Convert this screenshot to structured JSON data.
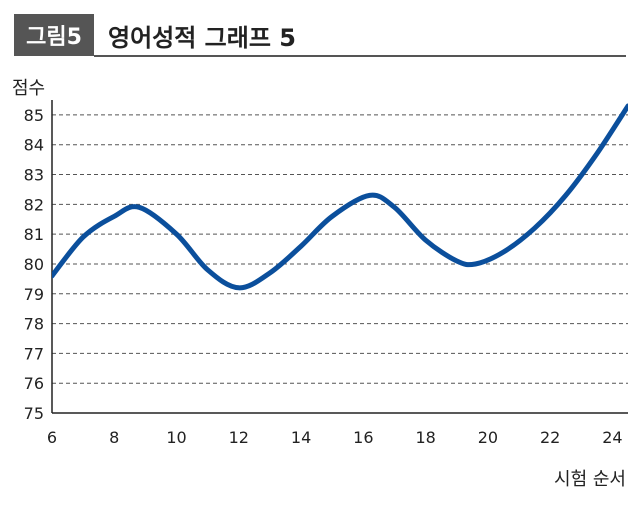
{
  "header": {
    "badge": "그림5",
    "title": "영어성적 그래프 5"
  },
  "chart_data": {
    "type": "line",
    "title": "영어성적 그래프 5",
    "xlabel": "시험 순서",
    "ylabel": "점수",
    "xlim": [
      6,
      24.5
    ],
    "ylim": [
      75,
      85.5
    ],
    "xticks": [
      6,
      8,
      10,
      12,
      14,
      16,
      18,
      20,
      22,
      24
    ],
    "yticks": [
      75,
      76,
      77,
      78,
      79,
      80,
      81,
      82,
      83,
      84,
      85
    ],
    "grid": "horizontal-dashed",
    "line_color": "#0b4f9c",
    "series": [
      {
        "name": "",
        "x": [
          6,
          7,
          8,
          8.8,
          10,
          11,
          12,
          13,
          14,
          15,
          16.2,
          17,
          18,
          19,
          19.6,
          20.5,
          21.5,
          22.5,
          23.5,
          24.5
        ],
        "y": [
          79.6,
          80.9,
          81.6,
          81.9,
          81.0,
          79.8,
          79.2,
          79.7,
          80.6,
          81.6,
          82.3,
          81.9,
          80.8,
          80.1,
          80.0,
          80.4,
          81.2,
          82.3,
          83.7,
          85.3
        ]
      }
    ]
  }
}
